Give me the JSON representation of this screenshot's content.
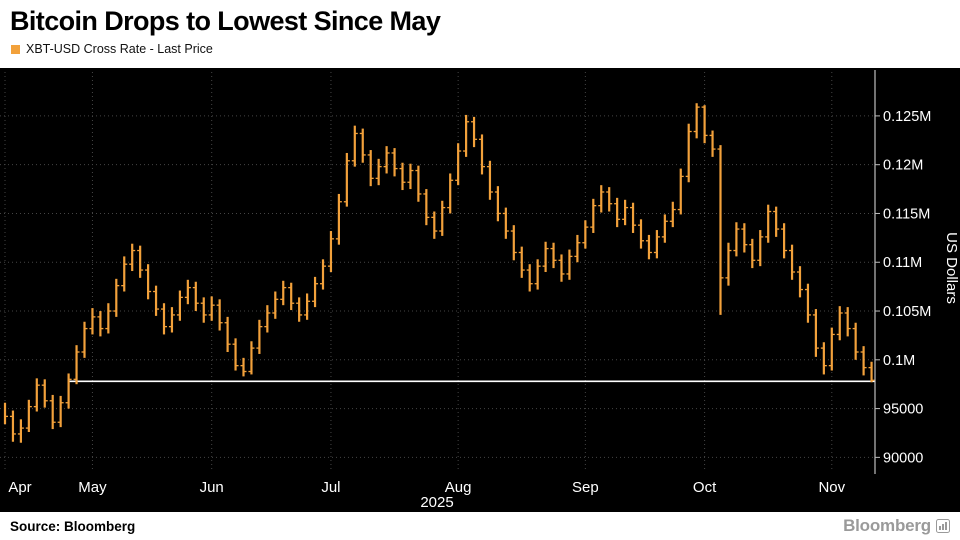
{
  "header": {
    "title": "Bitcoin Drops to Lowest Since May"
  },
  "legend": {
    "label": "XBT-USD Cross Rate - Last Price",
    "swatch_color": "#F2A13B"
  },
  "footer": {
    "source": "Source: Bloomberg",
    "logo": "Bloomberg"
  },
  "colors": {
    "page_bg": "#FFFFFF",
    "chart_bg": "#000000",
    "text_on_chart": "#FFFFFF",
    "title_color": "#000000"
  },
  "chart_data": {
    "type": "bar",
    "variant": "hlc-price-bars",
    "title": "Bitcoin Drops to Lowest Since May",
    "series_name": "XBT-USD Cross Rate - Last Price",
    "xlabel": "",
    "ylabel": "US Dollars",
    "year_label": "2025",
    "unit": "USD thousands",
    "ylim": [
      88.5,
      129.5
    ],
    "grid": true,
    "legend_position": "top-left",
    "bar_color": "#F2A13B",
    "grid_color": "#454545",
    "axis_color": "#BFBFBF",
    "y_ticks": [
      {
        "value": 125,
        "label": "0.125M"
      },
      {
        "value": 120,
        "label": "0.12M"
      },
      {
        "value": 115,
        "label": "0.115M"
      },
      {
        "value": 110,
        "label": "0.11M"
      },
      {
        "value": 105,
        "label": "0.105M"
      },
      {
        "value": 100,
        "label": "0.1M"
      },
      {
        "value": 95,
        "label": "95000"
      },
      {
        "value": 90,
        "label": "90000"
      }
    ],
    "x_ticks": [
      {
        "index": 0,
        "label": "Apr"
      },
      {
        "index": 11,
        "label": "May"
      },
      {
        "index": 26,
        "label": "Jun"
      },
      {
        "index": 41,
        "label": "Jul"
      },
      {
        "index": 57,
        "label": "Aug"
      },
      {
        "index": 73,
        "label": "Sep"
      },
      {
        "index": 88,
        "label": "Oct"
      },
      {
        "index": 104,
        "label": "Nov"
      }
    ],
    "reference_line": {
      "value": 97.8,
      "start_index": 8,
      "color": "#FFFFFF"
    },
    "bars_hlc_usd_thousands": [
      [
        95.6,
        93.4,
        94.2
      ],
      [
        94.8,
        91.6,
        92.4
      ],
      [
        93.9,
        91.5,
        93.0
      ],
      [
        95.9,
        92.6,
        95.2
      ],
      [
        98.1,
        94.7,
        97.4
      ],
      [
        98.0,
        95.1,
        95.8
      ],
      [
        96.4,
        92.9,
        93.6
      ],
      [
        96.3,
        93.1,
        95.6
      ],
      [
        98.6,
        95.0,
        98.0
      ],
      [
        101.5,
        97.5,
        100.8
      ],
      [
        103.9,
        100.2,
        103.2
      ],
      [
        105.3,
        102.6,
        104.4
      ],
      [
        105.0,
        102.4,
        103.2
      ],
      [
        105.8,
        102.7,
        105.0
      ],
      [
        108.3,
        104.4,
        107.6
      ],
      [
        110.6,
        107.0,
        109.8
      ],
      [
        111.9,
        109.1,
        111.2
      ],
      [
        111.7,
        108.4,
        109.2
      ],
      [
        109.8,
        106.2,
        107.0
      ],
      [
        107.6,
        104.5,
        105.2
      ],
      [
        105.8,
        102.6,
        103.4
      ],
      [
        105.4,
        102.8,
        104.6
      ],
      [
        107.1,
        104.0,
        106.4
      ],
      [
        108.2,
        105.7,
        107.4
      ],
      [
        108.0,
        105.0,
        105.8
      ],
      [
        106.4,
        103.8,
        104.6
      ],
      [
        106.5,
        104.0,
        105.6
      ],
      [
        106.2,
        103.0,
        103.8
      ],
      [
        104.4,
        100.8,
        101.6
      ],
      [
        102.2,
        98.9,
        99.4
      ],
      [
        100.2,
        98.3,
        98.8
      ],
      [
        101.9,
        98.5,
        101.2
      ],
      [
        104.1,
        100.6,
        103.4
      ],
      [
        105.6,
        102.8,
        104.8
      ],
      [
        107.0,
        104.2,
        106.2
      ],
      [
        108.1,
        105.6,
        107.4
      ],
      [
        107.9,
        105.1,
        105.8
      ],
      [
        106.4,
        103.9,
        104.6
      ],
      [
        106.8,
        104.1,
        106.0
      ],
      [
        108.5,
        105.4,
        107.8
      ],
      [
        110.3,
        107.2,
        109.6
      ],
      [
        113.2,
        109.0,
        112.4
      ],
      [
        117.0,
        111.8,
        116.2
      ],
      [
        121.2,
        115.7,
        120.4
      ],
      [
        124.0,
        119.8,
        123.2
      ],
      [
        123.7,
        120.2,
        121.0
      ],
      [
        121.5,
        117.8,
        118.6
      ],
      [
        120.6,
        117.9,
        119.8
      ],
      [
        121.9,
        119.1,
        121.2
      ],
      [
        121.7,
        118.8,
        119.6
      ],
      [
        120.2,
        117.4,
        118.2
      ],
      [
        120.1,
        117.5,
        119.4
      ],
      [
        119.9,
        116.2,
        117.0
      ],
      [
        117.5,
        113.8,
        114.6
      ],
      [
        115.2,
        112.4,
        113.2
      ],
      [
        116.3,
        112.7,
        115.6
      ],
      [
        119.1,
        115.0,
        118.4
      ],
      [
        122.2,
        117.9,
        121.4
      ],
      [
        125.1,
        120.8,
        124.4
      ],
      [
        124.9,
        121.8,
        122.6
      ],
      [
        123.1,
        119.0,
        119.8
      ],
      [
        120.4,
        116.4,
        117.2
      ],
      [
        117.8,
        114.2,
        115.0
      ],
      [
        115.6,
        112.4,
        113.2
      ],
      [
        113.8,
        110.2,
        111.0
      ],
      [
        111.6,
        108.4,
        109.2
      ],
      [
        109.8,
        107.0,
        107.8
      ],
      [
        110.3,
        107.2,
        109.6
      ],
      [
        112.1,
        109.0,
        111.4
      ],
      [
        112.0,
        109.4,
        110.2
      ],
      [
        110.8,
        108.0,
        108.8
      ],
      [
        111.3,
        108.2,
        110.6
      ],
      [
        112.8,
        110.0,
        112.0
      ],
      [
        114.3,
        111.4,
        113.6
      ],
      [
        116.5,
        113.0,
        115.8
      ],
      [
        117.9,
        115.1,
        117.2
      ],
      [
        117.7,
        115.2,
        116.0
      ],
      [
        116.6,
        113.6,
        114.4
      ],
      [
        116.4,
        113.8,
        115.6
      ],
      [
        116.1,
        113.0,
        113.8
      ],
      [
        114.4,
        111.4,
        112.2
      ],
      [
        112.8,
        110.3,
        111.0
      ],
      [
        113.3,
        110.4,
        112.6
      ],
      [
        114.9,
        112.0,
        114.2
      ],
      [
        116.2,
        113.6,
        115.4
      ],
      [
        119.6,
        114.9,
        118.8
      ],
      [
        124.2,
        118.2,
        123.4
      ],
      [
        126.3,
        122.7,
        125.9
      ],
      [
        126.1,
        122.2,
        123.0
      ],
      [
        123.5,
        120.8,
        121.6
      ],
      [
        122.0,
        104.6,
        108.4
      ],
      [
        112.0,
        107.6,
        111.2
      ],
      [
        114.1,
        110.6,
        113.4
      ],
      [
        114.0,
        111.0,
        111.8
      ],
      [
        112.4,
        109.4,
        110.2
      ],
      [
        113.3,
        109.6,
        112.6
      ],
      [
        115.9,
        112.0,
        115.2
      ],
      [
        115.7,
        112.6,
        113.4
      ],
      [
        114.0,
        110.4,
        111.2
      ],
      [
        111.8,
        108.2,
        109.0
      ],
      [
        109.6,
        106.4,
        107.2
      ],
      [
        107.8,
        103.8,
        104.6
      ],
      [
        105.2,
        100.3,
        101.2
      ],
      [
        101.8,
        98.5,
        99.4
      ],
      [
        103.3,
        98.9,
        102.6
      ],
      [
        105.5,
        102.0,
        104.8
      ],
      [
        105.4,
        102.4,
        103.2
      ],
      [
        103.8,
        100.0,
        100.8
      ],
      [
        101.4,
        98.4,
        99.2
      ],
      [
        99.8,
        97.7,
        97.9
      ]
    ]
  }
}
